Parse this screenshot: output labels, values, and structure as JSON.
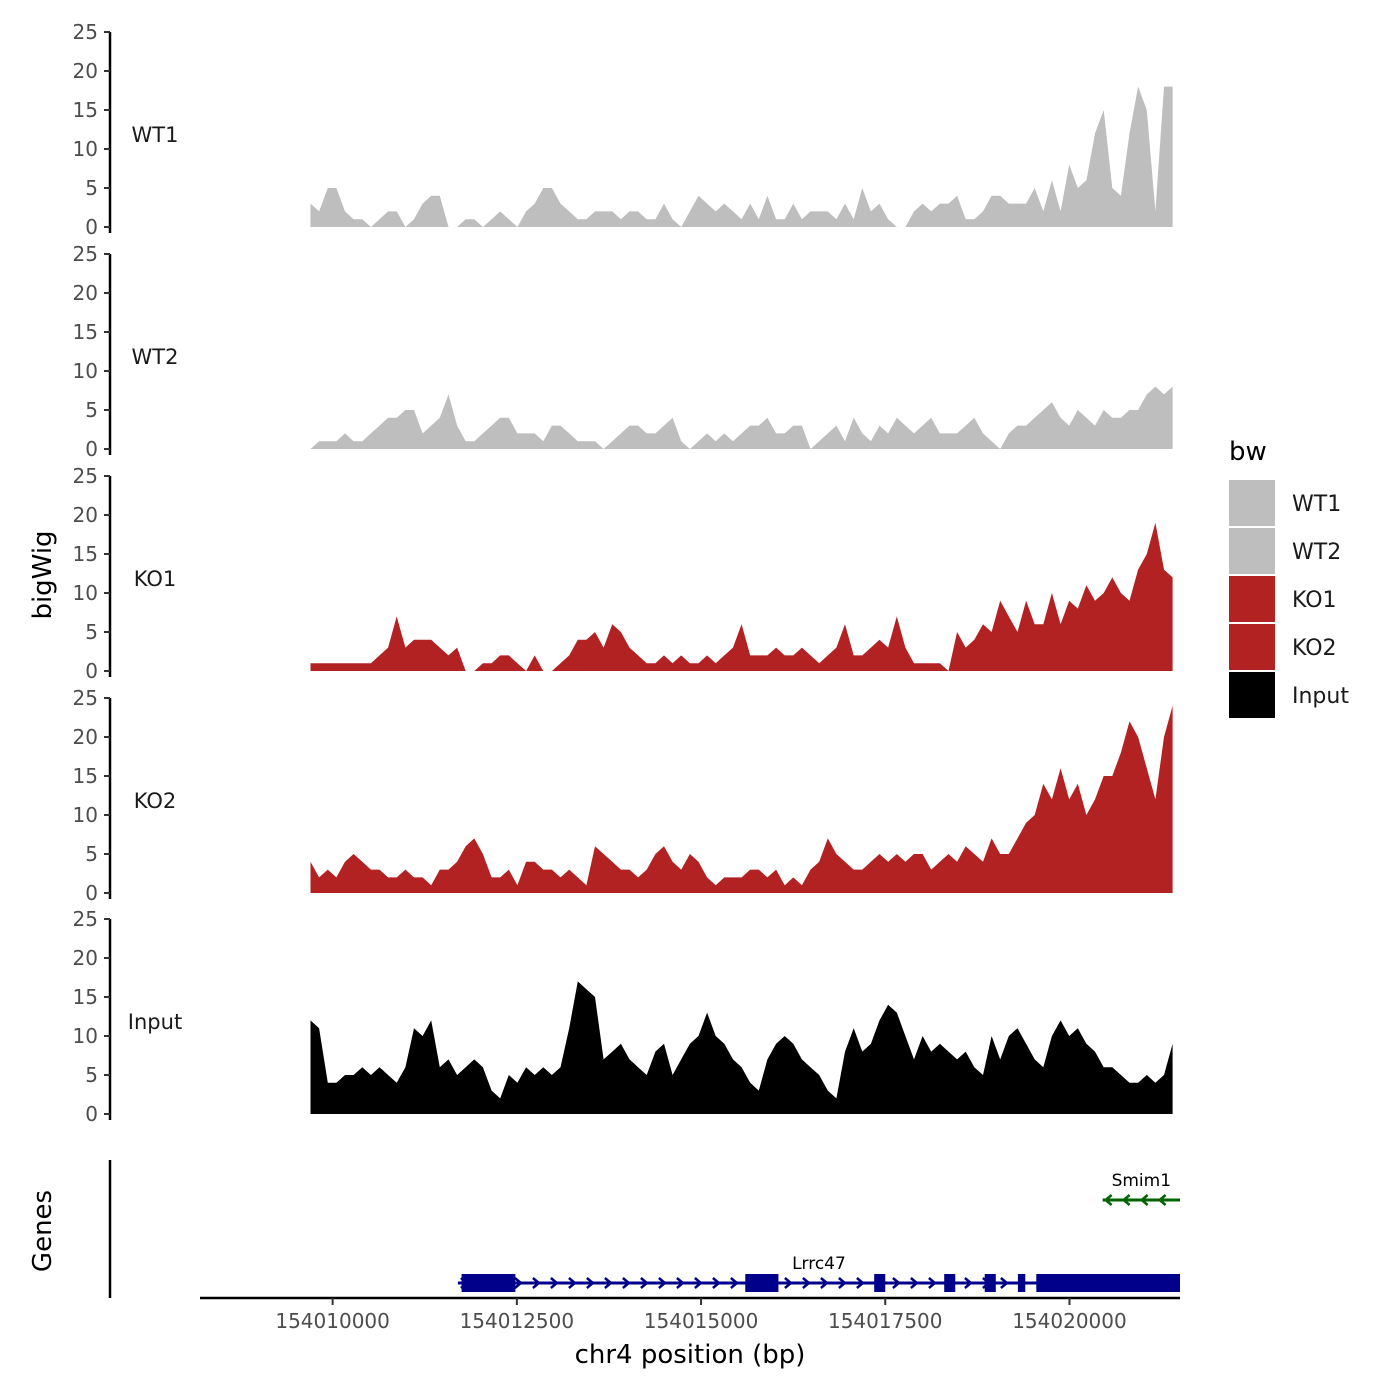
{
  "chart_data": {
    "type": "area",
    "title": "",
    "xlabel": "chr4 position (bp)",
    "ylabel": "bigWig",
    "genes_label": "Genes",
    "ylim": [
      0,
      25
    ],
    "yticks": [
      0,
      5,
      10,
      15,
      20,
      25
    ],
    "xlim": [
      154008200,
      154021500
    ],
    "data_range": [
      154009700,
      154021400
    ],
    "xticks": [
      154010000,
      154012500,
      154015000,
      154017500,
      154020000
    ],
    "x_tick_labels": [
      "154010000",
      "154012500",
      "154015000",
      "154017500",
      "154020000"
    ],
    "legend": {
      "title": "bw",
      "position": "right",
      "entries": [
        {
          "label": "WT1",
          "color": "#bebebe"
        },
        {
          "label": "WT2",
          "color": "#bebebe"
        },
        {
          "label": "KO1",
          "color": "#b22222"
        },
        {
          "label": "KO2",
          "color": "#b22222"
        },
        {
          "label": "Input",
          "color": "#000000"
        }
      ]
    },
    "series": [
      {
        "name": "WT1",
        "color": "#bebebe",
        "values": [
          3,
          2,
          5,
          5,
          2,
          1,
          1,
          0,
          1,
          2,
          2,
          0,
          1,
          3,
          4,
          4,
          0,
          0,
          1,
          1,
          0,
          1,
          2,
          1,
          0,
          2,
          3,
          5,
          5,
          3,
          2,
          1,
          1,
          2,
          2,
          2,
          1,
          2,
          2,
          1,
          1,
          3,
          1,
          0,
          2,
          4,
          3,
          2,
          3,
          2,
          1,
          3,
          1,
          4,
          1,
          1,
          3,
          1,
          2,
          2,
          2,
          1,
          3,
          1,
          5,
          2,
          3,
          1,
          0,
          0,
          2,
          3,
          2,
          3,
          3,
          4,
          1,
          1,
          2,
          4,
          4,
          3,
          3,
          3,
          5,
          2,
          6,
          2,
          8,
          5,
          6,
          12,
          15,
          5,
          4,
          12,
          18,
          15,
          2,
          18,
          18
        ]
      },
      {
        "name": "WT2",
        "color": "#bebebe",
        "values": [
          0,
          1,
          1,
          1,
          2,
          1,
          1,
          2,
          3,
          4,
          4,
          5,
          5,
          2,
          3,
          4,
          7,
          3,
          1,
          1,
          2,
          3,
          4,
          4,
          2,
          2,
          2,
          1,
          3,
          3,
          2,
          1,
          1,
          1,
          0,
          1,
          2,
          3,
          3,
          2,
          2,
          3,
          4,
          1,
          0,
          1,
          2,
          1,
          2,
          1,
          2,
          3,
          3,
          4,
          2,
          2,
          3,
          3,
          0,
          1,
          2,
          3,
          1,
          4,
          2,
          1,
          3,
          2,
          4,
          3,
          2,
          3,
          4,
          2,
          2,
          2,
          3,
          4,
          2,
          1,
          0,
          2,
          3,
          3,
          4,
          5,
          6,
          4,
          3,
          5,
          4,
          3,
          5,
          4,
          4,
          5,
          5,
          7,
          8,
          7,
          8
        ]
      },
      {
        "name": "KO1",
        "color": "#b22222",
        "values": [
          1,
          1,
          1,
          1,
          1,
          1,
          1,
          1,
          2,
          3,
          7,
          3,
          4,
          4,
          4,
          3,
          2,
          3,
          0,
          0,
          1,
          1,
          2,
          2,
          1,
          0,
          2,
          0,
          0,
          1,
          2,
          4,
          4,
          5,
          3,
          6,
          5,
          3,
          2,
          1,
          1,
          2,
          1,
          2,
          1,
          1,
          2,
          1,
          2,
          3,
          6,
          2,
          2,
          2,
          3,
          2,
          2,
          3,
          2,
          1,
          2,
          3,
          6,
          2,
          2,
          3,
          4,
          3,
          7,
          3,
          1,
          1,
          1,
          1,
          0,
          5,
          3,
          4,
          6,
          5,
          9,
          7,
          5,
          9,
          6,
          6,
          10,
          6,
          9,
          8,
          11,
          9,
          10,
          12,
          10,
          9,
          13,
          15,
          19,
          13,
          12
        ]
      },
      {
        "name": "KO2",
        "color": "#b22222",
        "values": [
          4,
          2,
          3,
          2,
          4,
          5,
          4,
          3,
          3,
          2,
          2,
          3,
          2,
          2,
          1,
          3,
          3,
          4,
          6,
          7,
          5,
          2,
          2,
          3,
          1,
          4,
          4,
          3,
          3,
          2,
          3,
          2,
          1,
          6,
          5,
          4,
          3,
          3,
          2,
          3,
          5,
          6,
          4,
          3,
          5,
          4,
          2,
          1,
          2,
          2,
          2,
          3,
          3,
          2,
          3,
          1,
          2,
          1,
          3,
          4,
          7,
          5,
          4,
          3,
          3,
          4,
          5,
          4,
          5,
          4,
          5,
          5,
          3,
          4,
          5,
          4,
          6,
          5,
          4,
          7,
          5,
          5,
          7,
          9,
          10,
          14,
          12,
          16,
          12,
          14,
          10,
          12,
          15,
          15,
          18,
          22,
          20,
          16,
          12,
          20,
          24
        ]
      },
      {
        "name": "Input",
        "color": "#000000",
        "values": [
          12,
          11,
          4,
          4,
          5,
          5,
          6,
          5,
          6,
          5,
          4,
          6,
          11,
          10,
          12,
          6,
          7,
          5,
          6,
          7,
          6,
          3,
          2,
          5,
          4,
          6,
          5,
          6,
          5,
          6,
          11,
          17,
          16,
          15,
          7,
          8,
          9,
          7,
          6,
          5,
          8,
          9,
          5,
          7,
          9,
          10,
          13,
          10,
          9,
          7,
          6,
          4,
          3,
          7,
          9,
          10,
          9,
          7,
          6,
          5,
          3,
          2,
          8,
          11,
          8,
          9,
          12,
          14,
          13,
          10,
          7,
          10,
          8,
          9,
          8,
          7,
          8,
          6,
          5,
          10,
          7,
          10,
          11,
          9,
          7,
          6,
          10,
          12,
          10,
          11,
          9,
          8,
          6,
          6,
          5,
          4,
          4,
          5,
          4,
          5,
          9
        ]
      }
    ],
    "genes": [
      {
        "name": "Lrrc47",
        "strand": "+",
        "color": "#00008b",
        "start": 154011700,
        "end": 154021500,
        "exons": [
          [
            154011750,
            154012480
          ],
          [
            154015600,
            154016050
          ],
          [
            154017350,
            154017500
          ],
          [
            154018300,
            154018450
          ],
          [
            154018850,
            154019000
          ],
          [
            154019300,
            154019400
          ],
          [
            154019550,
            154021500
          ]
        ]
      },
      {
        "name": "Smim1",
        "strand": "-",
        "color": "#006400",
        "start": 154020450,
        "end": 154021500,
        "exons": []
      }
    ]
  }
}
